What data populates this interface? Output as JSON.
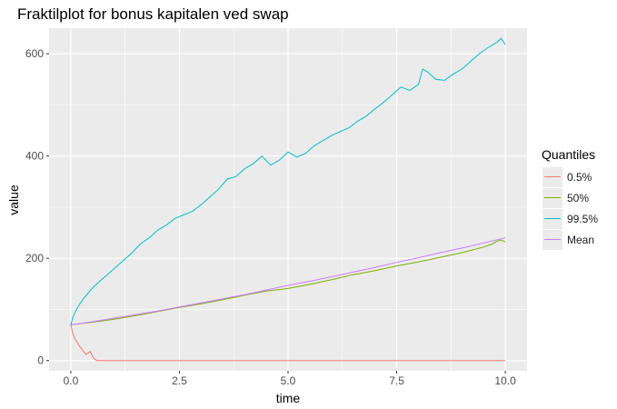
{
  "chart_data": {
    "type": "line",
    "title": "Fraktilplot for bonus kapitalen ved swap",
    "xlabel": "time",
    "ylabel": "value",
    "xlim": [
      -0.5,
      10.5
    ],
    "ylim": [
      -20,
      650
    ],
    "x_ticks": [
      0,
      2.5,
      5,
      7.5,
      10
    ],
    "x_tick_labels": [
      "0.0",
      "2.5",
      "5.0",
      "7.5",
      "10.0"
    ],
    "y_ticks": [
      0,
      200,
      400,
      600
    ],
    "y_tick_labels": [
      "0",
      "200",
      "400",
      "600"
    ],
    "grid": true,
    "legend": {
      "title": "Quantiles",
      "placement": "right"
    },
    "series": [
      {
        "name": "0.5%",
        "color": "#F8766D",
        "x": [
          0,
          0.05,
          0.1,
          0.15,
          0.2,
          0.25,
          0.3,
          0.35,
          0.4,
          0.45,
          0.5,
          0.55,
          0.6,
          0.7,
          1.0,
          2.0,
          3.0,
          4.0,
          5.0,
          6.0,
          7.0,
          8.0,
          9.0,
          10.0
        ],
        "values": [
          70,
          52,
          42,
          35,
          28,
          23,
          17,
          12,
          15,
          18,
          8,
          3,
          0,
          0,
          0,
          0,
          0,
          0,
          0,
          0,
          0,
          0,
          0,
          0
        ]
      },
      {
        "name": "50%",
        "color": "#7CAE00",
        "x": [
          0,
          0.5,
          1.0,
          1.5,
          2.0,
          2.5,
          3.0,
          3.5,
          4.0,
          4.5,
          5.0,
          5.5,
          6.0,
          6.5,
          7.0,
          7.5,
          8.0,
          8.5,
          9.0,
          9.5,
          9.7,
          9.8,
          9.9,
          10.0
        ],
        "values": [
          70,
          75,
          81,
          88,
          96,
          104,
          111,
          119,
          128,
          136,
          141,
          149,
          158,
          168,
          176,
          185,
          193,
          202,
          211,
          222,
          228,
          233,
          236,
          232
        ]
      },
      {
        "name": "99.5%",
        "color": "#00BFC4",
        "x": [
          0,
          0.05,
          0.1,
          0.2,
          0.3,
          0.4,
          0.5,
          0.6,
          0.8,
          1.0,
          1.2,
          1.4,
          1.6,
          1.8,
          2.0,
          2.2,
          2.4,
          2.6,
          2.8,
          3.0,
          3.2,
          3.4,
          3.6,
          3.8,
          4.0,
          4.2,
          4.4,
          4.6,
          4.8,
          5.0,
          5.2,
          5.4,
          5.6,
          5.8,
          6.0,
          6.2,
          6.4,
          6.6,
          6.8,
          7.0,
          7.2,
          7.4,
          7.6,
          7.8,
          8.0,
          8.1,
          8.2,
          8.4,
          8.6,
          8.8,
          9.0,
          9.2,
          9.4,
          9.6,
          9.8,
          9.9,
          10.0
        ],
        "values": [
          70,
          85,
          95,
          110,
          122,
          132,
          142,
          150,
          165,
          180,
          195,
          210,
          228,
          240,
          255,
          265,
          278,
          285,
          292,
          305,
          320,
          335,
          355,
          360,
          375,
          385,
          400,
          382,
          392,
          408,
          398,
          405,
          420,
          430,
          440,
          448,
          455,
          468,
          478,
          492,
          505,
          520,
          535,
          528,
          540,
          570,
          565,
          550,
          548,
          560,
          570,
          585,
          600,
          612,
          622,
          630,
          618
        ]
      },
      {
        "name": "Mean",
        "color": "#C77CFF",
        "x": [
          0,
          0.5,
          1.0,
          1.5,
          2.0,
          2.5,
          3.0,
          3.5,
          4.0,
          4.5,
          5.0,
          5.5,
          6.0,
          6.5,
          7.0,
          7.5,
          8.0,
          8.5,
          9.0,
          9.5,
          10.0
        ],
        "values": [
          70,
          76,
          83,
          90,
          97,
          105,
          113,
          121,
          129,
          138,
          147,
          155,
          164,
          173,
          182,
          192,
          201,
          211,
          220,
          230,
          240
        ]
      }
    ]
  }
}
